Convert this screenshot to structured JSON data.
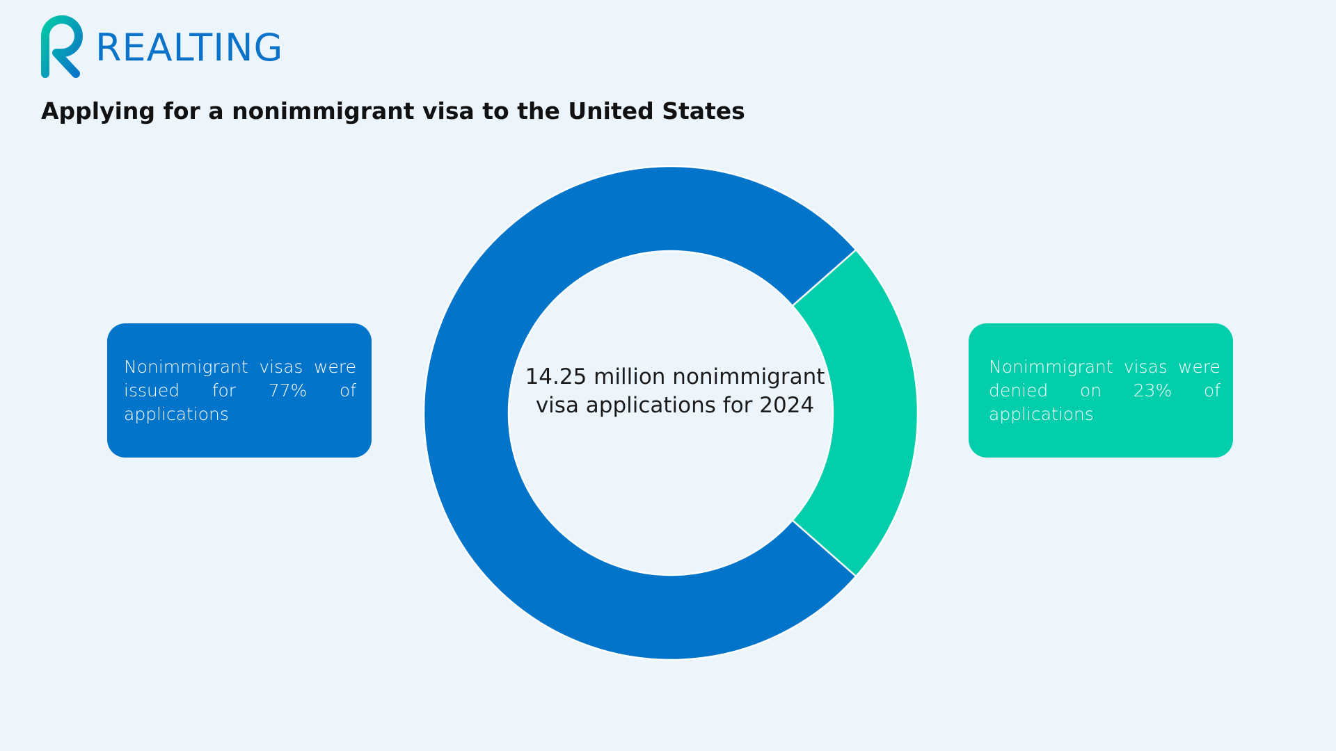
{
  "brand": {
    "name": "REALTING",
    "icon": "realting-r-logo-icon"
  },
  "title": "Applying for a nonimmigrant visa to the United States",
  "center_label": "14.25 million nonimmigrant visa applications for 2024",
  "callouts": {
    "issued": "Nonimmigrant visas were issued for 77% of applications",
    "denied": "Nonimmigrant visas were denied on 23% of applications"
  },
  "colors": {
    "issued": "#0275ca",
    "denied": "#03ceab",
    "background": "#ecf4fc",
    "brand": "#0a72c9"
  },
  "chart_data": {
    "type": "pie",
    "variant": "donut",
    "title": "Applying for a nonimmigrant visa to the United States",
    "total": "14.25 million",
    "categories": [
      "Issued",
      "Denied"
    ],
    "values": [
      77,
      23
    ],
    "unit": "%",
    "legend": "none",
    "annotations": [
      "Nonimmigrant visas were issued for 77% of applications",
      "Nonimmigrant visas were denied on 23% of applications"
    ]
  }
}
